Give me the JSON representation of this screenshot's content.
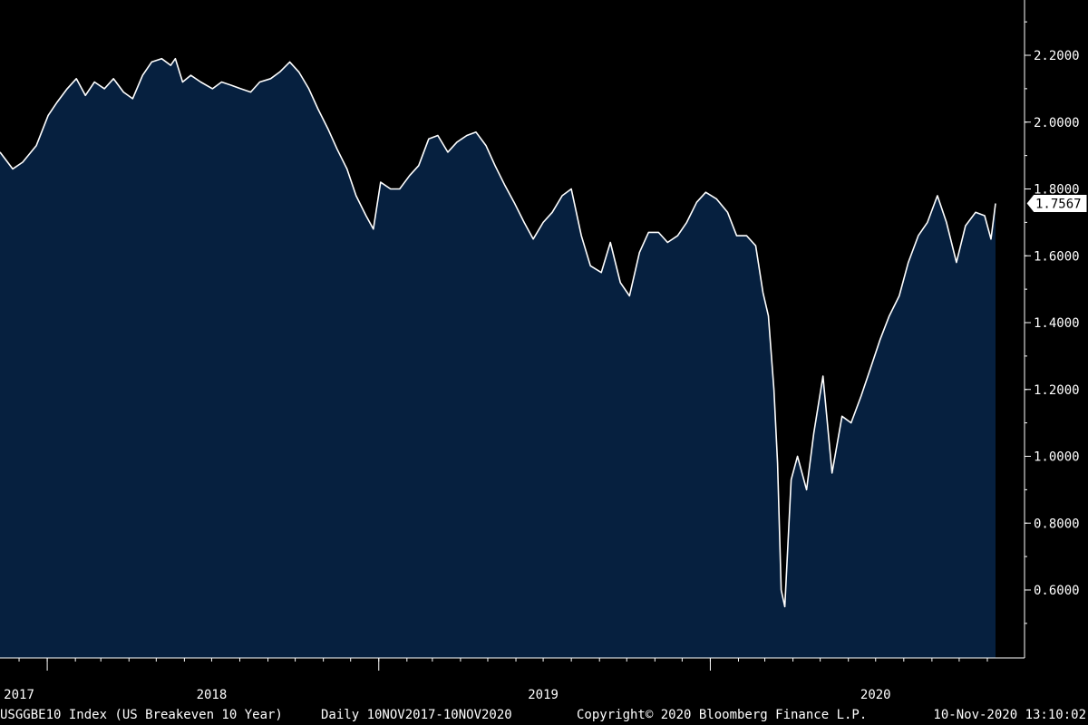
{
  "colors": {
    "background": "#000000",
    "area_fill": "#06203f",
    "line": "#ffffff",
    "axis": "#ffffff"
  },
  "footer": {
    "index_label": "USGGBE10 Index (US Breakeven 10 Year)",
    "range_label": "Daily 10NOV2017-10NOV2020",
    "copyright": "Copyright© 2020 Bloomberg Finance L.P.",
    "timestamp": "10-Nov-2020 13:10:02"
  },
  "chart_data": {
    "type": "area",
    "title": "",
    "xlabel": "",
    "ylabel": "",
    "x_start": "2017-11-10",
    "x_end": "2020-11-10",
    "ylim": [
      0.42,
      2.42
    ],
    "yticks": [
      0.6,
      0.8,
      1.0,
      1.2,
      1.4,
      1.6,
      1.8,
      2.0,
      2.2
    ],
    "ytick_labels": [
      "0.6000",
      "0.8000",
      "1.0000",
      "1.2000",
      "1.4000",
      "1.6000",
      "1.8000",
      "2.0000",
      "2.2000"
    ],
    "x_labels": [
      {
        "label": "2017",
        "date": "2017-12-01"
      },
      {
        "label": "2018",
        "date": "2018-07-01"
      },
      {
        "label": "2019",
        "date": "2019-07-01"
      },
      {
        "label": "2020",
        "date": "2020-07-01"
      }
    ],
    "year_boundaries": [
      "2018-01-01",
      "2019-01-01",
      "2020-01-01"
    ],
    "last_value_label": "1.7567",
    "grid": false,
    "legend": "none",
    "series": [
      {
        "x": [
          "2017-11-10",
          "2017-11-24",
          "2017-12-05",
          "2017-12-20",
          "2018-01-02",
          "2018-01-12",
          "2018-01-23",
          "2018-02-02",
          "2018-02-12",
          "2018-02-22",
          "2018-03-05",
          "2018-03-15",
          "2018-03-26",
          "2018-04-05",
          "2018-04-16",
          "2018-04-26",
          "2018-05-07",
          "2018-05-17",
          "2018-05-22",
          "2018-05-30",
          "2018-06-08",
          "2018-06-19",
          "2018-07-02",
          "2018-07-12",
          "2018-07-23",
          "2018-08-02",
          "2018-08-13",
          "2018-08-23",
          "2018-09-04",
          "2018-09-14",
          "2018-09-25",
          "2018-10-05",
          "2018-10-16",
          "2018-10-26",
          "2018-11-06",
          "2018-11-16",
          "2018-11-27",
          "2018-12-07",
          "2018-12-18",
          "2018-12-26",
          "2019-01-03",
          "2019-01-14",
          "2019-01-24",
          "2019-02-04",
          "2019-02-14",
          "2019-02-25",
          "2019-03-07",
          "2019-03-18",
          "2019-03-28",
          "2019-04-08",
          "2019-04-18",
          "2019-04-29",
          "2019-05-09",
          "2019-05-20",
          "2019-05-30",
          "2019-06-10",
          "2019-06-20",
          "2019-07-01",
          "2019-07-11",
          "2019-07-22",
          "2019-08-01",
          "2019-08-12",
          "2019-08-22",
          "2019-09-03",
          "2019-09-13",
          "2019-09-24",
          "2019-10-04",
          "2019-10-15",
          "2019-10-25",
          "2019-11-05",
          "2019-11-15",
          "2019-11-26",
          "2019-12-06",
          "2019-12-17",
          "2019-12-27",
          "2020-01-08",
          "2020-01-20",
          "2020-01-30",
          "2020-02-10",
          "2020-02-20",
          "2020-02-28",
          "2020-03-05",
          "2020-03-11",
          "2020-03-15",
          "2020-03-19",
          "2020-03-23",
          "2020-03-30",
          "2020-04-06",
          "2020-04-16",
          "2020-04-24",
          "2020-05-04",
          "2020-05-14",
          "2020-05-25",
          "2020-06-04",
          "2020-06-15",
          "2020-06-25",
          "2020-07-06",
          "2020-07-16",
          "2020-07-27",
          "2020-08-06",
          "2020-08-17",
          "2020-08-27",
          "2020-09-07",
          "2020-09-17",
          "2020-09-28",
          "2020-10-08",
          "2020-10-19",
          "2020-10-29",
          "2020-11-05",
          "2020-11-10"
        ],
        "values": [
          1.91,
          1.86,
          1.88,
          1.93,
          2.02,
          2.06,
          2.1,
          2.13,
          2.08,
          2.12,
          2.1,
          2.13,
          2.09,
          2.07,
          2.14,
          2.18,
          2.19,
          2.17,
          2.19,
          2.12,
          2.14,
          2.12,
          2.1,
          2.12,
          2.11,
          2.1,
          2.09,
          2.12,
          2.13,
          2.15,
          2.18,
          2.15,
          2.1,
          2.04,
          1.98,
          1.92,
          1.86,
          1.78,
          1.72,
          1.68,
          1.82,
          1.8,
          1.8,
          1.84,
          1.87,
          1.95,
          1.96,
          1.91,
          1.94,
          1.96,
          1.97,
          1.93,
          1.87,
          1.81,
          1.76,
          1.7,
          1.65,
          1.7,
          1.73,
          1.78,
          1.8,
          1.66,
          1.57,
          1.55,
          1.64,
          1.52,
          1.48,
          1.61,
          1.67,
          1.67,
          1.64,
          1.66,
          1.7,
          1.76,
          1.79,
          1.77,
          1.73,
          1.66,
          1.66,
          1.63,
          1.49,
          1.42,
          1.2,
          0.98,
          0.6,
          0.55,
          0.93,
          1.0,
          0.9,
          1.07,
          1.24,
          0.95,
          1.12,
          1.1,
          1.18,
          1.26,
          1.35,
          1.42,
          1.48,
          1.58,
          1.66,
          1.7,
          1.78,
          1.7,
          1.58,
          1.69,
          1.73,
          1.72,
          1.65,
          1.7567
        ]
      }
    ]
  }
}
